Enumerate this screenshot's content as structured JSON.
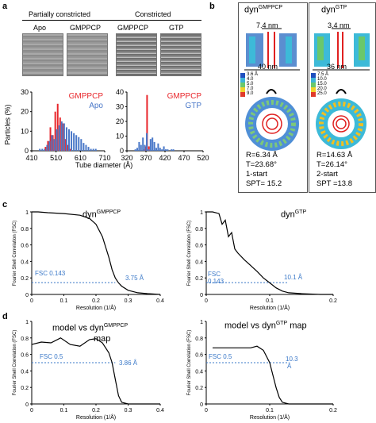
{
  "panel_labels": {
    "a": "a",
    "b": "b",
    "c": "c",
    "d": "d"
  },
  "panel_a": {
    "group_left": "Partially constricted",
    "group_right": "Constricted",
    "images": [
      "Apo",
      "GMPPCP",
      "GMPPCP",
      "GTP"
    ],
    "colors": {
      "gmppcp": "#e8262b",
      "apo": "#4a78c8",
      "gtp": "#4a78c8"
    }
  },
  "panel_b": {
    "left": {
      "title_base": "dyn",
      "title_sup": "GMPPCP",
      "inner": "7.4 nm",
      "outer": "40 nm",
      "stats": [
        "R=6.34 Å",
        "T=23.68°",
        "1-start",
        "SPT= 15.2"
      ],
      "scale": [
        "3.6 Å",
        "4.0",
        "5.0",
        "7.0",
        "9.0"
      ]
    },
    "right": {
      "title_base": "dyn",
      "title_sup": "GTP",
      "inner": "3.4 nm",
      "outer": "36 nm",
      "stats": [
        "R=14.63 Å",
        "T=26.14°",
        "2-start",
        "SPT =13.8"
      ],
      "scale": [
        "7.5 Å",
        "10.0",
        "15.0",
        "20.0",
        "25.0"
      ]
    }
  },
  "panel_c": {
    "left": {
      "title_base": "dyn",
      "title_sup": "GMPPCP",
      "fsc_label": "FSC 0.143",
      "res_label": "3.75 Å"
    },
    "right": {
      "title_base": "dyn",
      "title_sup": "GTP",
      "fsc_label": "FSC",
      "fsc_label2": "0.143",
      "res_label": "10.1 Å"
    }
  },
  "panel_d": {
    "left": {
      "title_pre": "model vs dyn",
      "title_sup": "GMPPCP",
      "title_post": "map",
      "fsc_label": "FSC 0.5",
      "res_label": "3.86 Å"
    },
    "right": {
      "title_pre": "model vs dyn",
      "title_sup": "GTP",
      "title_post": " map",
      "fsc_label": "FSC 0.5",
      "res_label": "10.3",
      "res_label2": "Å"
    }
  },
  "chart_data": [
    {
      "type": "bar",
      "title": "",
      "xlabel": "Tube diameter (Å)",
      "ylabel": "Particles (%)",
      "x": [
        440,
        450,
        460,
        470,
        480,
        490,
        500,
        510,
        520,
        530,
        540,
        550,
        560,
        570,
        580,
        590,
        600,
        610,
        620,
        630,
        640,
        650,
        660,
        670,
        680
      ],
      "series": [
        {
          "name": "GMPPCP",
          "values": [
            0,
            0,
            0,
            2,
            5,
            12,
            8,
            20,
            24,
            17,
            14,
            6,
            3,
            1,
            0,
            0,
            0,
            0,
            0,
            0,
            0,
            0,
            0,
            0,
            0
          ]
        },
        {
          "name": "Apo",
          "values": [
            1,
            1,
            1,
            3,
            5,
            8,
            6,
            11,
            13,
            15,
            14,
            12,
            11,
            10,
            9,
            8,
            7,
            6,
            4,
            3,
            2,
            1,
            1,
            1,
            0
          ]
        }
      ],
      "xticks": [
        "410",
        "510",
        "610",
        "710"
      ],
      "xlim": [
        410,
        710
      ],
      "yticks": [
        "0",
        "10",
        "20",
        "30"
      ],
      "ylim": [
        0,
        30
      ],
      "legend": "top-right"
    },
    {
      "type": "bar",
      "title": "",
      "xlabel": "Tube diameter (Å)",
      "ylabel": "",
      "x": [
        340,
        345,
        350,
        355,
        360,
        365,
        370,
        375,
        380,
        385,
        390,
        395,
        400,
        405,
        410,
        415,
        420,
        425,
        430,
        435,
        440,
        445,
        450
      ],
      "series": [
        {
          "name": "GMPPCP",
          "values": [
            0,
            0,
            0,
            0,
            0,
            1,
            3,
            38,
            3,
            0,
            0,
            0,
            0,
            0,
            0,
            0,
            0,
            0,
            0,
            0,
            0,
            0,
            0
          ]
        },
        {
          "name": "GTP",
          "values": [
            1,
            2,
            6,
            4,
            9,
            4,
            12,
            1,
            8,
            9,
            6,
            2,
            5,
            2,
            1,
            3,
            1,
            1,
            0,
            1,
            1,
            0,
            0
          ]
        }
      ],
      "xticks": [
        "320",
        "370",
        "420",
        "470",
        "520"
      ],
      "xlim": [
        320,
        520
      ],
      "yticks": [
        "0",
        "10",
        "20",
        "30",
        "40"
      ],
      "ylim": [
        0,
        40
      ],
      "legend": "top-right"
    },
    {
      "type": "line",
      "xlabel": "Resolution (1/Å)",
      "ylabel": "Fourier Shell Correlation (FSC)",
      "xlim": [
        0,
        0.4
      ],
      "ylim": [
        0,
        1
      ],
      "xticks": [
        "0",
        "0.1",
        "0.2",
        "0.3",
        "0.4"
      ],
      "yticks": [
        "0",
        "0.2",
        "0.4",
        "0.6",
        "0.8",
        "1"
      ],
      "threshold": 0.143,
      "x": [
        0,
        0.02,
        0.05,
        0.1,
        0.15,
        0.18,
        0.2,
        0.22,
        0.24,
        0.25,
        0.26,
        0.27,
        0.28,
        0.3,
        0.33,
        0.36,
        0.4
      ],
      "y": [
        1,
        1,
        0.99,
        0.98,
        0.96,
        0.92,
        0.85,
        0.7,
        0.45,
        0.3,
        0.2,
        0.14,
        0.1,
        0.05,
        0.02,
        0.01,
        0
      ]
    },
    {
      "type": "line",
      "xlabel": "Resolution (1/Å)",
      "ylabel": "Fourier Shell Correlation (FSC)",
      "xlim": [
        0,
        0.2
      ],
      "ylim": [
        0,
        1
      ],
      "xticks": [
        "0",
        "0.1",
        "0.2"
      ],
      "yticks": [
        "0",
        "0.2",
        "0.4",
        "0.6",
        "0.8",
        "1"
      ],
      "threshold": 0.143,
      "x": [
        0,
        0.01,
        0.02,
        0.025,
        0.03,
        0.035,
        0.04,
        0.045,
        0.05,
        0.06,
        0.07,
        0.08,
        0.09,
        0.1,
        0.11,
        0.12,
        0.13,
        0.15,
        0.18,
        0.2
      ],
      "y": [
        1,
        1,
        0.98,
        0.85,
        0.9,
        0.7,
        0.75,
        0.55,
        0.5,
        0.42,
        0.35,
        0.28,
        0.2,
        0.14,
        0.08,
        0.04,
        0.02,
        0.01,
        0,
        0
      ]
    },
    {
      "type": "line",
      "xlabel": "Resolution (1/Å)",
      "ylabel": "Fourier Shell Correlation (FSC)",
      "xlim": [
        0,
        0.4
      ],
      "ylim": [
        0,
        1
      ],
      "xticks": [
        "0",
        "0.1",
        "0.2",
        "0.3",
        "0.4"
      ],
      "yticks": [
        "0",
        "0.2",
        "0.4",
        "0.6",
        "0.8",
        "1"
      ],
      "threshold": 0.5,
      "x": [
        0,
        0.03,
        0.06,
        0.09,
        0.12,
        0.15,
        0.18,
        0.2,
        0.22,
        0.24,
        0.25,
        0.26,
        0.27,
        0.28,
        0.3,
        0.35,
        0.4
      ],
      "y": [
        0.72,
        0.75,
        0.74,
        0.8,
        0.72,
        0.7,
        0.78,
        0.79,
        0.74,
        0.62,
        0.5,
        0.3,
        0.1,
        0.02,
        0.0,
        0.0,
        0.0
      ]
    },
    {
      "type": "line",
      "xlabel": "Resolution (1/Å)",
      "ylabel": "Fourier Shell Correlation (FSC)",
      "xlim": [
        0,
        0.2
      ],
      "ylim": [
        0,
        1
      ],
      "xticks": [
        "0",
        "0.1",
        "0.2"
      ],
      "yticks": [
        "0",
        "0.2",
        "0.4",
        "0.6",
        "0.8",
        "1"
      ],
      "threshold": 0.5,
      "x": [
        0.01,
        0.03,
        0.05,
        0.07,
        0.08,
        0.09,
        0.1,
        0.105,
        0.11,
        0.115,
        0.12,
        0.13,
        0.2
      ],
      "y": [
        0.68,
        0.68,
        0.68,
        0.68,
        0.7,
        0.65,
        0.5,
        0.35,
        0.2,
        0.08,
        0.02,
        0.0,
        0.0
      ]
    }
  ]
}
